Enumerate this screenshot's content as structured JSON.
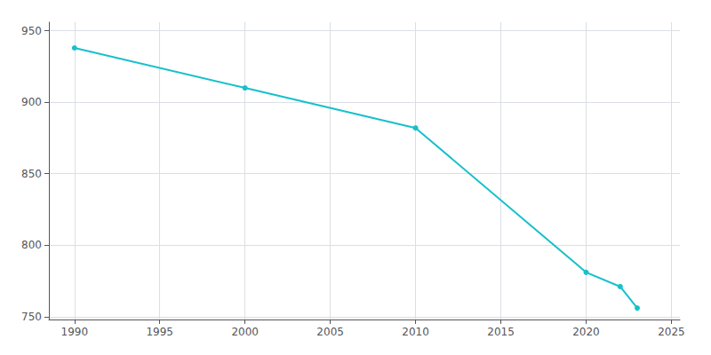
{
  "chart_data": {
    "type": "line",
    "x": [
      1990,
      2000,
      2010,
      2020,
      2022,
      2023
    ],
    "values": [
      938,
      910,
      882,
      781,
      771,
      756
    ],
    "color": "#17c0cb",
    "marker": "circle",
    "xlim": [
      1988.5,
      2025.5
    ],
    "ylim": [
      748,
      956
    ],
    "xticks": [
      1990,
      1995,
      2000,
      2005,
      2010,
      2015,
      2020,
      2025
    ],
    "yticks": [
      750,
      800,
      850,
      900,
      950
    ],
    "grid": true
  }
}
